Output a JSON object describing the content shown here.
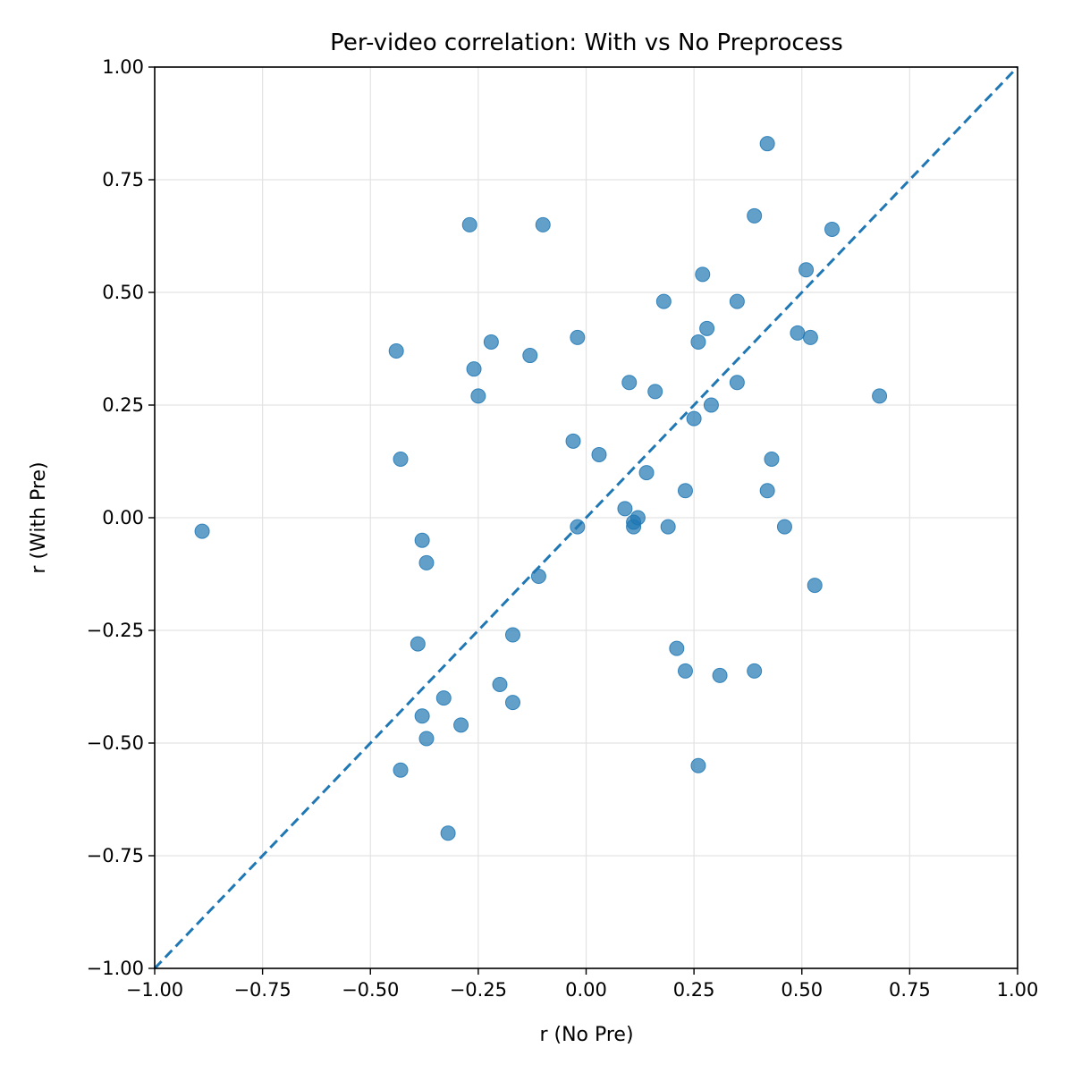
{
  "chart_data": {
    "type": "scatter",
    "title": "Per-video correlation: With vs No Preprocess",
    "xlabel": "r (No Pre)",
    "ylabel": "r (With Pre)",
    "xlim": [
      -1.0,
      1.0
    ],
    "ylim": [
      -1.0,
      1.0
    ],
    "x_ticks": [
      -1.0,
      -0.75,
      -0.5,
      -0.25,
      0.0,
      0.25,
      0.5,
      0.75,
      1.0
    ],
    "x_tick_labels": [
      "−1.00",
      "−0.75",
      "−0.50",
      "−0.25",
      "0.00",
      "0.25",
      "0.50",
      "0.75",
      "1.00"
    ],
    "y_ticks": [
      -1.0,
      -0.75,
      -0.5,
      -0.25,
      0.0,
      0.25,
      0.5,
      0.75,
      1.0
    ],
    "y_tick_labels": [
      "−1.00",
      "−0.75",
      "−0.50",
      "−0.25",
      "0.00",
      "0.25",
      "0.50",
      "0.75",
      "1.00"
    ],
    "grid": true,
    "reference_line": {
      "kind": "y=x",
      "style": "dashed",
      "color": "#1f77b4"
    },
    "marker_color": "#1f77b4",
    "points": [
      {
        "x": -0.89,
        "y": -0.03
      },
      {
        "x": -0.44,
        "y": 0.37
      },
      {
        "x": -0.43,
        "y": 0.13
      },
      {
        "x": -0.43,
        "y": -0.56
      },
      {
        "x": -0.39,
        "y": -0.28
      },
      {
        "x": -0.38,
        "y": -0.05
      },
      {
        "x": -0.38,
        "y": -0.44
      },
      {
        "x": -0.37,
        "y": -0.1
      },
      {
        "x": -0.37,
        "y": -0.49
      },
      {
        "x": -0.33,
        "y": -0.4
      },
      {
        "x": -0.32,
        "y": -0.7
      },
      {
        "x": -0.29,
        "y": -0.46
      },
      {
        "x": -0.27,
        "y": 0.65
      },
      {
        "x": -0.26,
        "y": 0.33
      },
      {
        "x": -0.25,
        "y": 0.27
      },
      {
        "x": -0.22,
        "y": 0.39
      },
      {
        "x": -0.2,
        "y": -0.37
      },
      {
        "x": -0.17,
        "y": -0.26
      },
      {
        "x": -0.17,
        "y": -0.41
      },
      {
        "x": -0.13,
        "y": 0.36
      },
      {
        "x": -0.11,
        "y": -0.13
      },
      {
        "x": -0.1,
        "y": 0.65
      },
      {
        "x": -0.03,
        "y": 0.17
      },
      {
        "x": -0.02,
        "y": -0.02
      },
      {
        "x": -0.02,
        "y": 0.4
      },
      {
        "x": 0.03,
        "y": 0.14
      },
      {
        "x": 0.09,
        "y": 0.02
      },
      {
        "x": 0.1,
        "y": 0.3
      },
      {
        "x": 0.11,
        "y": -0.02
      },
      {
        "x": 0.11,
        "y": -0.01
      },
      {
        "x": 0.12,
        "y": 0.0
      },
      {
        "x": 0.14,
        "y": 0.1
      },
      {
        "x": 0.16,
        "y": 0.28
      },
      {
        "x": 0.18,
        "y": 0.48
      },
      {
        "x": 0.19,
        "y": -0.02
      },
      {
        "x": 0.21,
        "y": -0.29
      },
      {
        "x": 0.23,
        "y": 0.06
      },
      {
        "x": 0.23,
        "y": -0.34
      },
      {
        "x": 0.25,
        "y": 0.22
      },
      {
        "x": 0.26,
        "y": 0.39
      },
      {
        "x": 0.26,
        "y": -0.55
      },
      {
        "x": 0.27,
        "y": 0.54
      },
      {
        "x": 0.28,
        "y": 0.42
      },
      {
        "x": 0.29,
        "y": 0.25
      },
      {
        "x": 0.31,
        "y": -0.35
      },
      {
        "x": 0.35,
        "y": 0.48
      },
      {
        "x": 0.35,
        "y": 0.3
      },
      {
        "x": 0.39,
        "y": 0.67
      },
      {
        "x": 0.39,
        "y": -0.34
      },
      {
        "x": 0.42,
        "y": 0.83
      },
      {
        "x": 0.42,
        "y": 0.06
      },
      {
        "x": 0.43,
        "y": 0.13
      },
      {
        "x": 0.46,
        "y": -0.02
      },
      {
        "x": 0.49,
        "y": 0.41
      },
      {
        "x": 0.51,
        "y": 0.55
      },
      {
        "x": 0.52,
        "y": 0.4
      },
      {
        "x": 0.53,
        "y": -0.15
      },
      {
        "x": 0.57,
        "y": 0.64
      },
      {
        "x": 0.68,
        "y": 0.27
      }
    ]
  }
}
